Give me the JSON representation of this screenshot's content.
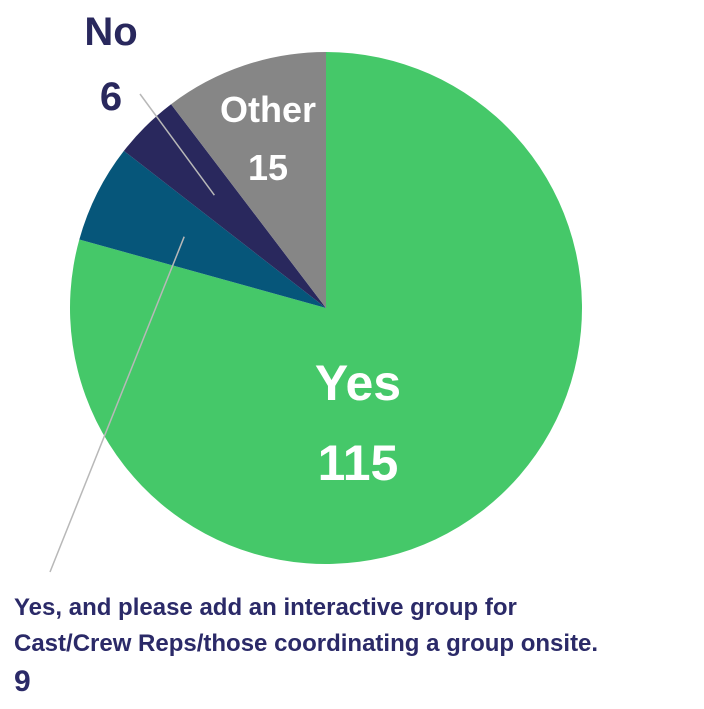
{
  "chart_data": {
    "type": "pie",
    "title": "",
    "start_angle_deg": 0,
    "direction": "clockwise",
    "slices": [
      {
        "label": "Yes",
        "value": 115,
        "color": "#45c869",
        "label_color": "#ffffff"
      },
      {
        "label": "Yes, and please add an interactive group for Cast/Crew Reps/those coordinating a group onsite.",
        "label_lines": [
          "Yes, and please add an interactive group for",
          "Cast/Crew Reps/those coordinating a group onsite."
        ],
        "value": 9,
        "color": "#06567a",
        "label_color": "#2b2a68"
      },
      {
        "label": "No",
        "value": 6,
        "color": "#29285d",
        "label_color": "#29285d"
      },
      {
        "label": "Other",
        "value": 15,
        "color": "#868686",
        "label_color": "#ffffff"
      }
    ]
  }
}
